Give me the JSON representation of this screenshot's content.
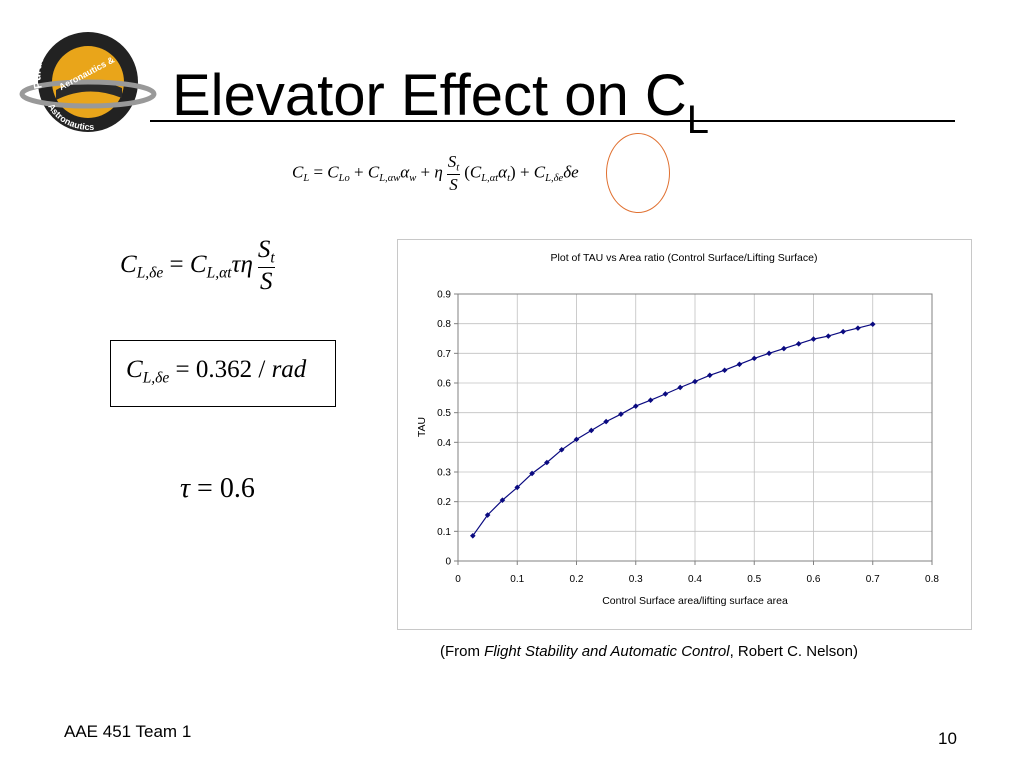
{
  "slide": {
    "title_main": "Elevator Effect on C",
    "title_sub": "L",
    "footer": "AAE 451 Team 1",
    "page_number": "10"
  },
  "logo": {
    "top_text": "Purdue University",
    "middle_text": "Aeronautics &",
    "bottom_text": "Astronautics"
  },
  "equations": {
    "lift_total": "C_L = C_Lo + C_L,αw α_w + η (S_t/S)(C_L,αt α_t) + C_L,δe δe",
    "control_power": "C_L,δe = C_L,αt τ η S_t/S",
    "control_power_value": "C_L,δe = 0.362 / rad",
    "tau_value": "τ = 0.6"
  },
  "caption": {
    "prefix": "(From ",
    "book": "Flight Stability and Automatic Control",
    "suffix": ", Robert C. Nelson)"
  },
  "colors": {
    "series": "#0a0a80",
    "highlight_circle": "#e07030",
    "grid": "#c0c0c0"
  },
  "chart_data": {
    "type": "scatter",
    "title": "Plot of TAU vs Area ratio (Control Surface/Lifting Surface)",
    "xlabel": "Control Surface area/lifting surface area",
    "ylabel": "TAU",
    "xlim": [
      0,
      0.8
    ],
    "ylim": [
      0,
      0.9
    ],
    "xticks": [
      0,
      0.1,
      0.2,
      0.3,
      0.4,
      0.5,
      0.6,
      0.7,
      0.8
    ],
    "xtick_labels": [
      "0",
      "0.1",
      "0.2",
      "0.3",
      "0.4",
      "0.5",
      "0.6",
      "0.7",
      "0.8"
    ],
    "yticks": [
      0,
      0.1,
      0.2,
      0.3,
      0.4,
      0.5,
      0.6,
      0.7,
      0.8,
      0.9
    ],
    "ytick_labels": [
      "0",
      "0.1",
      "0.2",
      "0.3",
      "0.4",
      "0.5",
      "0.6",
      "0.7",
      "0.8",
      "0.9"
    ],
    "grid": true,
    "legend": "none",
    "series": [
      {
        "marker": "diamond",
        "line": true,
        "x": [
          0.025,
          0.05,
          0.075,
          0.1,
          0.125,
          0.15,
          0.175,
          0.2,
          0.225,
          0.25,
          0.275,
          0.3,
          0.325,
          0.35,
          0.375,
          0.4,
          0.425,
          0.45,
          0.475,
          0.5,
          0.525,
          0.55,
          0.575,
          0.6,
          0.625,
          0.65,
          0.675,
          0.7
        ],
        "y": [
          0.085,
          0.155,
          0.205,
          0.248,
          0.295,
          0.332,
          0.375,
          0.41,
          0.44,
          0.47,
          0.495,
          0.522,
          0.542,
          0.563,
          0.585,
          0.605,
          0.626,
          0.643,
          0.663,
          0.683,
          0.7,
          0.716,
          0.732,
          0.748,
          0.758,
          0.773,
          0.785,
          0.798
        ]
      }
    ]
  }
}
